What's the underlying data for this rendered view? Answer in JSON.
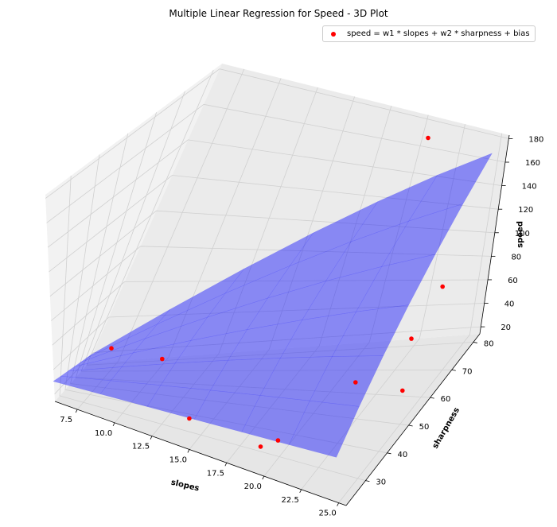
{
  "chart_data": {
    "type": "scatter",
    "subtype": "3d-scatter-with-surface",
    "title": "Multiple Linear Regression for Speed - 3D Plot",
    "xlabel": "slopes",
    "ylabel": "sharpness",
    "zlabel": "speed",
    "xlim": [
      6,
      25.5
    ],
    "ylim": [
      21,
      83
    ],
    "zlim": [
      14,
      183
    ],
    "x_ticks": [
      "7.5",
      "10.0",
      "12.5",
      "15.0",
      "17.5",
      "20.0",
      "22.5",
      "25.0"
    ],
    "y_ticks": [
      "30",
      "40",
      "50",
      "60",
      "70",
      "80"
    ],
    "z_ticks": [
      "20",
      "40",
      "60",
      "80",
      "100",
      "120",
      "140",
      "160",
      "180"
    ],
    "grid": true,
    "legend_position": "top-right",
    "series": [
      {
        "name": "speed = w1 * slopes + w2 * sharpness + bias",
        "kind": "scatter",
        "color": "#ff0000",
        "points": [
          {
            "slopes": 7,
            "sharpness": 76,
            "speed": 25
          },
          {
            "slopes": 11,
            "sharpness": 48,
            "speed": 41
          },
          {
            "slopes": 14,
            "sharpness": 33,
            "speed": 20
          },
          {
            "slopes": 19,
            "sharpness": 28,
            "speed": 22
          },
          {
            "slopes": 20,
            "sharpness": 29,
            "speed": 29
          },
          {
            "slopes": 21,
            "sharpness": 78,
            "speed": 178
          },
          {
            "slopes": 23,
            "sharpness": 43,
            "speed": 59
          },
          {
            "slopes": 24,
            "sharpness": 61,
            "speed": 59
          },
          {
            "slopes": 25,
            "sharpness": 50,
            "speed": 42
          },
          {
            "slopes": 25,
            "sharpness": 65,
            "speed": 95
          }
        ]
      },
      {
        "kind": "surface",
        "color": "#0000ff",
        "x": [
          6,
          25
        ],
        "y": [
          20,
          80
        ],
        "z_at_corners": {
          "x6_y20": 31,
          "x25_y20": 54,
          "x6_y80": 20,
          "x25_y80": 173
        }
      }
    ]
  }
}
